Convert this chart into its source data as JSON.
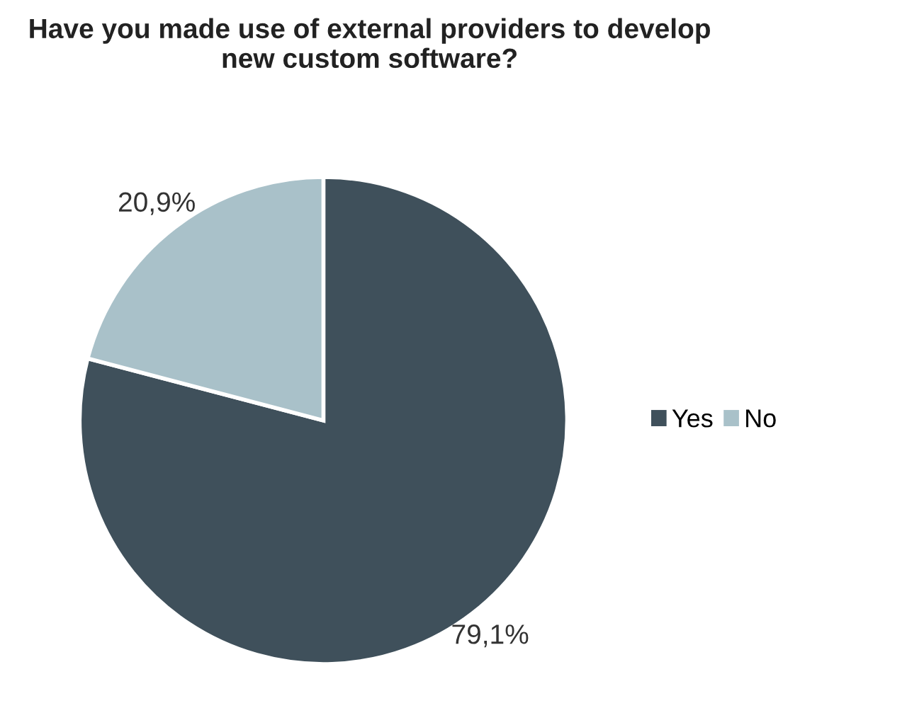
{
  "chart_data": {
    "type": "pie",
    "title": "Have you made use of external providers to develop\nnew custom software?",
    "categories": [
      "Yes",
      "No"
    ],
    "values": [
      79.1,
      20.9
    ],
    "value_labels": [
      "79,1%",
      "20,9%"
    ],
    "colors": [
      "#3f505b",
      "#a9c1c9"
    ],
    "legend": "right"
  }
}
